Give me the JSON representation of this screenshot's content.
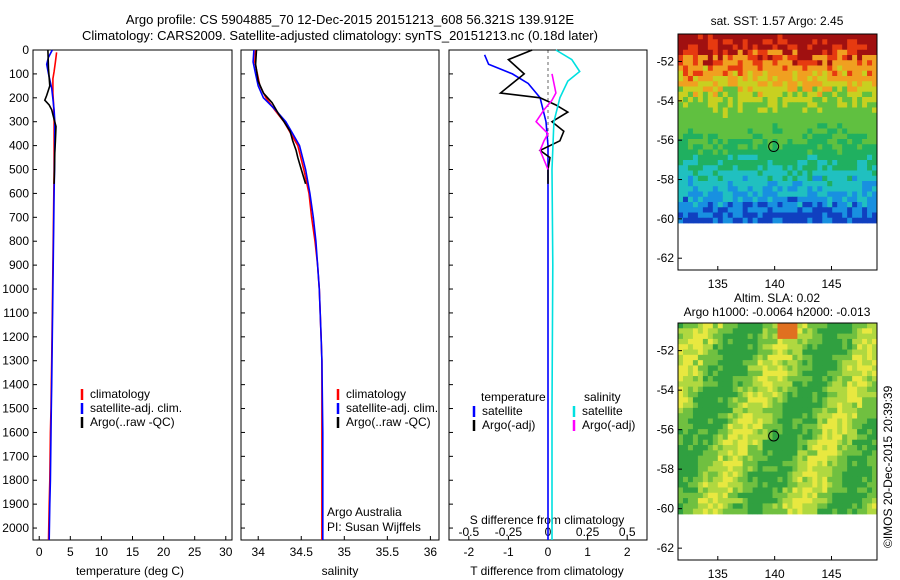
{
  "title_line1": "Argo profile: CS 5904885_70 12-Dec-2015 20151213_608 56.321S 139.912E",
  "title_line2": "Climatology: CARS2009. Satellite-adjusted climatology: synTS_20151213.nc (0.18d later)",
  "credit": "©IMOS 20-Dec-2015 20:39:39",
  "colors": {
    "clim": "#ff0000",
    "sat": "#0000ff",
    "argo": "#000000",
    "sat_s": "#00e0e0",
    "argo_s": "#ff00ff"
  },
  "chart_data": [
    {
      "id": "temperature",
      "type": "line",
      "xlabel": "temperature (deg C)",
      "ylabel": "",
      "xlim": [
        -1,
        31
      ],
      "ylim": [
        2050,
        0
      ],
      "xticks": [
        0,
        5,
        10,
        15,
        20,
        25,
        30
      ],
      "yticks": [
        0,
        100,
        200,
        300,
        400,
        500,
        600,
        700,
        800,
        900,
        1000,
        1100,
        1200,
        1300,
        1400,
        1500,
        1600,
        1700,
        1800,
        1900,
        2000
      ],
      "legend": [
        "climatology",
        "satellite-adj. clim.",
        "Argo(..raw -QC)"
      ],
      "series": [
        {
          "name": "climatology",
          "color": "#ff0000",
          "x": [
            2.8,
            2.6,
            2.4,
            2.2,
            2.2,
            2.3,
            2.4,
            2.4,
            2.4,
            2.35,
            2.3,
            2.25,
            2.2,
            2.15,
            2.1,
            2.05,
            2.0,
            1.95,
            1.9,
            1.8,
            1.7,
            1.6,
            1.5
          ],
          "y": [
            10,
            50,
            90,
            120,
            180,
            220,
            300,
            400,
            500,
            600,
            700,
            800,
            900,
            1000,
            1100,
            1200,
            1300,
            1400,
            1500,
            1600,
            1800,
            1900,
            2050
          ]
        },
        {
          "name": "satellite-adj. clim.",
          "color": "#0000ff",
          "x": [
            2.1,
            1.5,
            1.2,
            1.5,
            2.0,
            2.4,
            2.5,
            2.5,
            2.45,
            2.4,
            2.35,
            2.3,
            2.25,
            2.2,
            2.15,
            2.1,
            2.05,
            2.0,
            1.95,
            1.9,
            1.8,
            1.7,
            1.6
          ],
          "y": [
            0,
            30,
            60,
            100,
            160,
            250,
            300,
            400,
            500,
            600,
            700,
            800,
            900,
            1000,
            1100,
            1200,
            1300,
            1400,
            1500,
            1600,
            1800,
            1900,
            2050
          ]
        },
        {
          "name": "Argo(..raw -QC)",
          "color": "#000000",
          "x": [
            1.4,
            1.5,
            1.7,
            1.2,
            0.9,
            1.6,
            2.0,
            2.3,
            2.7,
            2.6,
            2.5,
            2.45,
            2.4
          ],
          "y": [
            0,
            80,
            150,
            190,
            210,
            230,
            250,
            280,
            320,
            380,
            430,
            500,
            560
          ]
        }
      ]
    },
    {
      "id": "salinity",
      "type": "line",
      "xlabel": "salinity",
      "ylabel": "",
      "xlim": [
        33.8,
        36.1
      ],
      "ylim": [
        2050,
        0
      ],
      "xticks": [
        34,
        34.5,
        35,
        35.5,
        36
      ],
      "legend": [
        "climatology",
        "satellite-adj. clim.",
        "Argo(..raw -QC)"
      ],
      "annotation": [
        "Argo Australia",
        "PI: Susan Wijffels"
      ],
      "series": [
        {
          "name": "climatology",
          "color": "#ff0000",
          "x": [
            33.97,
            33.96,
            33.99,
            34.02,
            34.09,
            34.19,
            34.3,
            34.38,
            34.46,
            34.53,
            34.59,
            34.62,
            34.66,
            34.69,
            34.71,
            34.72,
            34.73,
            34.74,
            34.74,
            34.74
          ],
          "y": [
            0,
            50,
            100,
            150,
            200,
            250,
            300,
            350,
            400,
            500,
            600,
            700,
            800,
            900,
            1000,
            1100,
            1200,
            1300,
            1600,
            2050
          ]
        },
        {
          "name": "satellite-adj. clim.",
          "color": "#0000ff",
          "x": [
            33.95,
            33.94,
            33.97,
            34.0,
            34.06,
            34.2,
            34.32,
            34.4,
            34.48,
            34.55,
            34.6,
            34.64,
            34.67,
            34.69,
            34.71,
            34.72,
            34.73,
            34.74,
            34.75,
            34.75
          ],
          "y": [
            0,
            50,
            100,
            150,
            200,
            250,
            300,
            350,
            400,
            500,
            600,
            700,
            800,
            900,
            1000,
            1100,
            1200,
            1300,
            1600,
            2050
          ]
        },
        {
          "name": "Argo(..raw -QC)",
          "color": "#000000",
          "x": [
            33.98,
            33.97,
            34.0,
            34.06,
            34.16,
            34.24,
            34.3,
            34.37,
            34.4,
            34.44,
            34.46,
            34.5,
            34.55
          ],
          "y": [
            0,
            60,
            130,
            180,
            220,
            270,
            300,
            340,
            380,
            420,
            450,
            500,
            560
          ]
        }
      ]
    },
    {
      "id": "difference",
      "type": "line",
      "xlabel": "T difference from climatology",
      "x2label": "S difference from climatology",
      "xlim": [
        -2.5,
        2.5
      ],
      "ylim": [
        2050,
        0
      ],
      "xticks": [
        -2,
        -1,
        0,
        1,
        2
      ],
      "x2ticks": [
        "-0.5",
        "-0.25",
        "0",
        "0.25",
        "0.5"
      ],
      "legend_headers": [
        "temperature",
        "salinity"
      ],
      "legend": [
        "satellite",
        "Argo(-adj)",
        "satellite",
        "Argo(-adj)"
      ],
      "series": [
        {
          "name": "satellite",
          "group": "temperature",
          "color": "#0000ff",
          "x": [
            -1.6,
            -1.5,
            -0.9,
            -0.5,
            -0.2,
            -0.05,
            0,
            0,
            0,
            0
          ],
          "y": [
            20,
            60,
            100,
            140,
            200,
            300,
            400,
            800,
            1400,
            2050
          ]
        },
        {
          "name": "Argo(-adj)",
          "group": "temperature",
          "color": "#000000",
          "x": [
            -0.4,
            -1.0,
            -0.6,
            -1.2,
            -0.2,
            0.2,
            0.5,
            0.1,
            0.4,
            0.3,
            -0.2,
            0.05,
            0,
            0
          ],
          "y": [
            0,
            40,
            100,
            180,
            200,
            230,
            260,
            300,
            340,
            380,
            420,
            450,
            500,
            560
          ]
        },
        {
          "name": "satellite",
          "group": "salinity",
          "color": "#00e0e0",
          "x": [
            0.2,
            0.6,
            0.8,
            0.5,
            0.3,
            0.15,
            0.1,
            0.12,
            0.1,
            0.1
          ],
          "y": [
            0,
            40,
            90,
            130,
            200,
            300,
            500,
            900,
            1500,
            2050
          ]
        },
        {
          "name": "Argo(-adj)",
          "group": "salinity",
          "color": "#ff00ff",
          "x": [
            0.1,
            0.2,
            0.1,
            -0.1,
            -0.3,
            0.0,
            -0.1,
            -0.2,
            0.0
          ],
          "y": [
            100,
            180,
            210,
            250,
            300,
            350,
            380,
            420,
            500
          ]
        }
      ]
    },
    {
      "id": "sst_map",
      "type": "heatmap",
      "title": "sat. SST: 1.57 Argo: 2.45",
      "xlim": [
        131.5,
        149
      ],
      "ylim": [
        -62.6,
        -50.6
      ],
      "xticks": [
        135,
        140,
        145
      ],
      "yticks": [
        -52,
        -54,
        -56,
        -58,
        -60,
        -62
      ],
      "marker": {
        "lon": 139.912,
        "lat": -56.321
      }
    },
    {
      "id": "sla_map",
      "type": "heatmap",
      "title": "Altim. SLA: 0.02",
      "subtitle": "Argo h1000: -0.0064 h2000: -0.013",
      "xlim": [
        131.5,
        149
      ],
      "ylim": [
        -62.6,
        -50.6
      ],
      "xticks": [
        135,
        140,
        145
      ],
      "yticks": [
        -52,
        -54,
        -56,
        -58,
        -60,
        -62
      ],
      "marker": {
        "lon": 139.912,
        "lat": -56.321
      }
    }
  ]
}
